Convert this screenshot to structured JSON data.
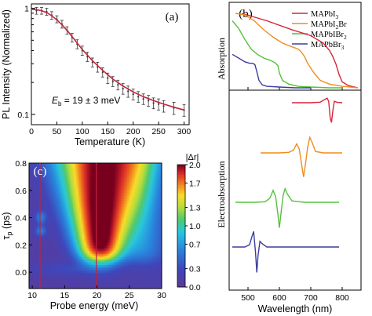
{
  "chart_data": [
    {
      "panel": "(a)",
      "type": "scatter",
      "xlabel": "Temperature (K)",
      "ylabel": "PL Intensity (Normalized)",
      "xlim": [
        0,
        310
      ],
      "ylim": [
        0.08,
        1.1
      ],
      "yscale": "log",
      "xticks": [
        0,
        50,
        100,
        150,
        200,
        250,
        300
      ],
      "yticks": [
        {
          "v": 0.1,
          "label": "0.1"
        },
        {
          "v": 1,
          "label": "1"
        }
      ],
      "annotation": {
        "prefix": "E",
        "sub": "b",
        "suffix": " = 19 ± 3 meV"
      },
      "series": [
        {
          "kind": "points-with-error",
          "color": "#333333",
          "x": [
            10,
            20,
            30,
            40,
            50,
            60,
            70,
            80,
            90,
            100,
            110,
            120,
            130,
            140,
            150,
            160,
            170,
            180,
            190,
            200,
            210,
            220,
            230,
            240,
            250,
            260,
            280,
            300
          ],
          "y": [
            0.95,
            0.95,
            0.93,
            0.86,
            0.79,
            0.71,
            0.62,
            0.53,
            0.46,
            0.4,
            0.35,
            0.31,
            0.28,
            0.25,
            0.22,
            0.205,
            0.19,
            0.175,
            0.165,
            0.155,
            0.147,
            0.14,
            0.135,
            0.128,
            0.125,
            0.12,
            0.115,
            0.11
          ],
          "err": [
            0.07,
            0.07,
            0.07,
            0.07,
            0.06,
            0.06,
            0.05,
            0.05,
            0.045,
            0.04,
            0.035,
            0.03,
            0.03,
            0.025,
            0.025,
            0.022,
            0.02,
            0.02,
            0.02,
            0.018,
            0.017,
            0.016,
            0.016,
            0.015,
            0.015,
            0.015,
            0.015,
            0.014
          ]
        },
        {
          "kind": "fit-line",
          "color": "#c0243a",
          "x": [
            0,
            10,
            20,
            30,
            40,
            50,
            60,
            70,
            80,
            90,
            100,
            120,
            140,
            160,
            180,
            200,
            220,
            240,
            260,
            280,
            300
          ],
          "y": [
            0.98,
            0.97,
            0.95,
            0.91,
            0.85,
            0.78,
            0.7,
            0.62,
            0.54,
            0.47,
            0.41,
            0.32,
            0.26,
            0.215,
            0.185,
            0.163,
            0.147,
            0.135,
            0.125,
            0.117,
            0.11
          ]
        }
      ]
    },
    {
      "panel": "(b)",
      "type": "line",
      "xlabel": "Wavelength (nm)",
      "ylabel_top": "Absorption",
      "ylabel_bottom": "Electroabsorption",
      "xlim": [
        440,
        860
      ],
      "xticks": [
        500,
        600,
        700,
        800
      ],
      "legend_placement": "top-right",
      "legend": [
        {
          "label": "MAPbI",
          "sub": "3",
          "color": "#d4253a"
        },
        {
          "label": "MAPbI",
          "sub": "2",
          "label2": "Br",
          "color": "#f08c1e"
        },
        {
          "label": "MAPbIBr",
          "sub": "2",
          "color": "#55c13c"
        },
        {
          "label": "MAPbBr",
          "sub": "3",
          "color": "#3c3ca0"
        }
      ],
      "absorption": [
        {
          "color": "#d4253a",
          "x": [
            480,
            560,
            640,
            700,
            740,
            760,
            770,
            780,
            790,
            800,
            820,
            840,
            850
          ],
          "y": [
            1.0,
            0.9,
            0.78,
            0.7,
            0.6,
            0.5,
            0.42,
            0.32,
            0.18,
            0.08,
            0.03,
            0.01,
            0.0
          ]
        },
        {
          "color": "#f08c1e",
          "x": [
            460,
            490,
            520,
            550,
            580,
            610,
            640,
            660,
            670,
            680,
            690,
            710,
            730,
            760,
            800,
            850
          ],
          "y": [
            1.0,
            0.98,
            0.9,
            0.78,
            0.68,
            0.6,
            0.55,
            0.52,
            0.48,
            0.42,
            0.33,
            0.2,
            0.1,
            0.05,
            0.02,
            0.0
          ]
        },
        {
          "color": "#55c13c",
          "x": [
            450,
            470,
            490,
            510,
            530,
            550,
            570,
            585,
            595,
            600,
            610,
            630,
            660,
            700,
            760,
            800
          ],
          "y": [
            0.9,
            0.8,
            0.65,
            0.52,
            0.45,
            0.4,
            0.37,
            0.34,
            0.3,
            0.2,
            0.1,
            0.05,
            0.02,
            0.01,
            0.0,
            0.0
          ]
        },
        {
          "color": "#3c3ca0",
          "x": [
            450,
            470,
            490,
            505,
            515,
            522,
            528,
            535,
            545,
            560,
            600,
            650,
            700
          ],
          "y": [
            0.45,
            0.4,
            0.35,
            0.33,
            0.33,
            0.31,
            0.22,
            0.1,
            0.04,
            0.02,
            0.01,
            0.0,
            0.0
          ]
        }
      ],
      "electroabsorption": [
        {
          "color": "#d4253a",
          "x": [
            640,
            700,
            730,
            745,
            752,
            757,
            762,
            766,
            770,
            775,
            785,
            800
          ],
          "y": [
            0,
            0.0,
            0.02,
            0.12,
            0.16,
            0.05,
            -0.55,
            -0.7,
            -0.3,
            0.05,
            0.01,
            0
          ]
        },
        {
          "color": "#f08c1e",
          "x": [
            540,
            600,
            630,
            645,
            655,
            663,
            670,
            677,
            683,
            690,
            697,
            705,
            715,
            740,
            800
          ],
          "y": [
            0,
            0.0,
            0.02,
            0.1,
            0.32,
            0.15,
            -0.35,
            -0.85,
            -0.4,
            0.2,
            0.55,
            0.35,
            0.05,
            0.0,
            0
          ]
        },
        {
          "color": "#55c13c",
          "x": [
            460,
            520,
            555,
            570,
            580,
            588,
            595,
            600,
            606,
            612,
            618,
            625,
            640,
            680,
            790
          ],
          "y": [
            0,
            0.0,
            0.02,
            0.15,
            0.42,
            0.2,
            -0.4,
            -0.9,
            -0.3,
            0.25,
            0.48,
            0.3,
            0.05,
            0.0,
            0
          ]
        },
        {
          "color": "#3c3ca0",
          "x": [
            450,
            490,
            505,
            512,
            518,
            524,
            528,
            532,
            538,
            545,
            560,
            600,
            700,
            790
          ],
          "y": [
            0,
            0.0,
            0.08,
            0.35,
            0.55,
            -0.2,
            -0.9,
            -0.3,
            0.2,
            0.12,
            0.0,
            0.0,
            0.0,
            0
          ]
        }
      ]
    },
    {
      "panel": "(c)",
      "type": "heatmap",
      "xlabel": "Probe energy (meV)",
      "xlim": [
        9.5,
        30
      ],
      "ylim": [
        -0.12,
        0.8
      ],
      "xticks": [
        10,
        15,
        20,
        25,
        30
      ],
      "yticks": [
        0.0,
        0.2,
        0.4,
        0.6,
        0.8
      ],
      "vertical_markers": [
        11.2,
        19.9
      ],
      "colorbar": {
        "ticks": [
          0.0,
          0.3,
          0.7,
          1.0,
          1.3,
          1.7,
          2.0
        ]
      }
    }
  ],
  "labels": {
    "panel_a": "(a)",
    "panel_b": "(b)",
    "panel_c": "(c)",
    "ylabel_c_main": "τ",
    "ylabel_c_sub": "p",
    "ylabel_c_rest": " (ps)",
    "colorbar_title": "|Δr|"
  }
}
